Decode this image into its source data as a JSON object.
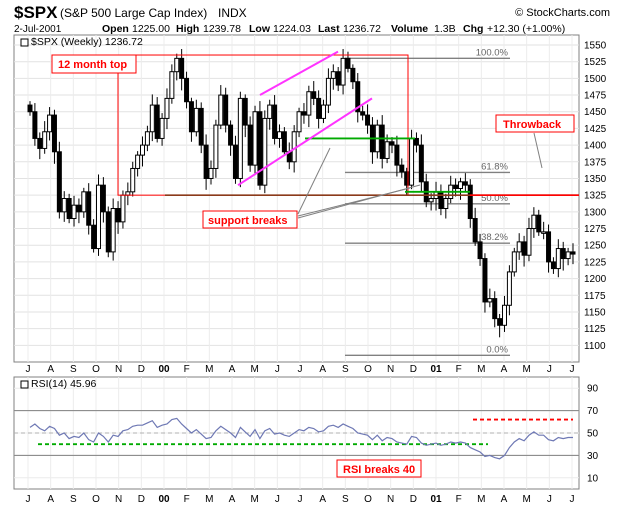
{
  "header": {
    "symbol": "$SPX",
    "name": "(S&P 500 Large Cap Index)",
    "exchange": "INDX",
    "copyright": "© StockCharts.com",
    "date": "2-Jul-2001",
    "open_label": "Open",
    "open": "1225.00",
    "high_label": "High",
    "high": "1239.78",
    "low_label": "Low",
    "low": "1224.03",
    "last_label": "Last",
    "last": "1236.72",
    "volume_label": "Volume",
    "volume": "1.3B",
    "chg_label": "Chg",
    "chg": "+12.30 (+1.00%)"
  },
  "colors": {
    "price": "#000000",
    "channel": "#ff33ff",
    "support": "#00aa00",
    "resistance": "#8b3a1a",
    "annotation": "#ff0000",
    "rsi": "#6e78b4",
    "fib": "#808080"
  },
  "chart_data": [
    {
      "type": "ohlc",
      "legend": "$SPX (Weekly) 1236.72",
      "ylim": [
        1075,
        1565
      ],
      "yticks": [
        1550,
        1525,
        1500,
        1475,
        1450,
        1425,
        1400,
        1375,
        1350,
        1325,
        1300,
        1275,
        1250,
        1225,
        1200,
        1175,
        1150,
        1125,
        1100
      ],
      "xticks": [
        "J",
        "A",
        "S",
        "O",
        "N",
        "D",
        "00",
        "F",
        "M",
        "A",
        "M",
        "J",
        "J",
        "A",
        "S",
        "O",
        "N",
        "D",
        "01",
        "F",
        "M",
        "A",
        "M",
        "J",
        "J"
      ],
      "weekly_close": [
        1450,
        1410,
        1395,
        1420,
        1445,
        1390,
        1300,
        1320,
        1290,
        1310,
        1300,
        1330,
        1280,
        1245,
        1340,
        1300,
        1240,
        1305,
        1285,
        1325,
        1330,
        1365,
        1385,
        1400,
        1420,
        1460,
        1410,
        1440,
        1470,
        1510,
        1530,
        1500,
        1465,
        1420,
        1455,
        1400,
        1350,
        1365,
        1430,
        1475,
        1430,
        1400,
        1350,
        1470,
        1430,
        1370,
        1450,
        1340,
        1440,
        1460,
        1410,
        1420,
        1390,
        1375,
        1420,
        1450,
        1445,
        1480,
        1470,
        1440,
        1460,
        1500,
        1510,
        1490,
        1530,
        1515,
        1495,
        1450,
        1445,
        1430,
        1390,
        1430,
        1380,
        1405,
        1400,
        1370,
        1360,
        1340,
        1410,
        1400,
        1345,
        1315,
        1320,
        1330,
        1305,
        1320,
        1340,
        1335,
        1345,
        1340,
        1290,
        1255,
        1230,
        1165,
        1170,
        1140,
        1130,
        1160,
        1210,
        1240,
        1255,
        1235,
        1275,
        1295,
        1270,
        1270,
        1225,
        1215,
        1245,
        1230,
        1240,
        1236.72
      ],
      "annotations": [
        {
          "text": "12 month top"
        },
        {
          "text": "support breaks"
        },
        {
          "text": "Throwback"
        }
      ],
      "fib_levels": [
        {
          "label": "100.0%",
          "value": 1530
        },
        {
          "label": "61.8%",
          "value": 1359
        },
        {
          "label": "50.0%",
          "value": 1312
        },
        {
          "label": "38.2%",
          "value": 1253
        },
        {
          "label": "0.0%",
          "value": 1085
        }
      ],
      "lines": {
        "resistance": 1325,
        "support_green_1": 1410,
        "support_green_2": 1330
      }
    },
    {
      "type": "line",
      "legend": "RSI(14) 45.96",
      "ylim": [
        0,
        100
      ],
      "yticks": [
        90,
        70,
        50,
        30,
        10
      ],
      "xticks": [
        "J",
        "A",
        "S",
        "O",
        "N",
        "D",
        "01",
        "F",
        "M",
        "A",
        "M",
        "J",
        "J"
      ],
      "levels": [
        70,
        50,
        30
      ],
      "support_level": 40,
      "target_level": 62,
      "annotations": [
        {
          "text": "RSI breaks 40"
        }
      ],
      "values": [
        55,
        58,
        54,
        52,
        56,
        54,
        48,
        50,
        45,
        47,
        46,
        50,
        44,
        42,
        50,
        47,
        42,
        48,
        47,
        52,
        53,
        56,
        57,
        57,
        59,
        61,
        55,
        57,
        58,
        62,
        63,
        58,
        54,
        50,
        53,
        49,
        45,
        46,
        52,
        56,
        53,
        50,
        46,
        55,
        51,
        47,
        53,
        45,
        52,
        54,
        49,
        50,
        48,
        47,
        50,
        53,
        52,
        55,
        54,
        51,
        52,
        56,
        57,
        55,
        58,
        56,
        54,
        50,
        49,
        48,
        44,
        48,
        43,
        46,
        45,
        42,
        41,
        40,
        47,
        46,
        41,
        39,
        40,
        41,
        39,
        40,
        42,
        41,
        42,
        41,
        37,
        35,
        33,
        29,
        30,
        28,
        27,
        30,
        37,
        42,
        45,
        43,
        48,
        51,
        48,
        48,
        44,
        43,
        46,
        45,
        46,
        45.96
      ]
    }
  ]
}
